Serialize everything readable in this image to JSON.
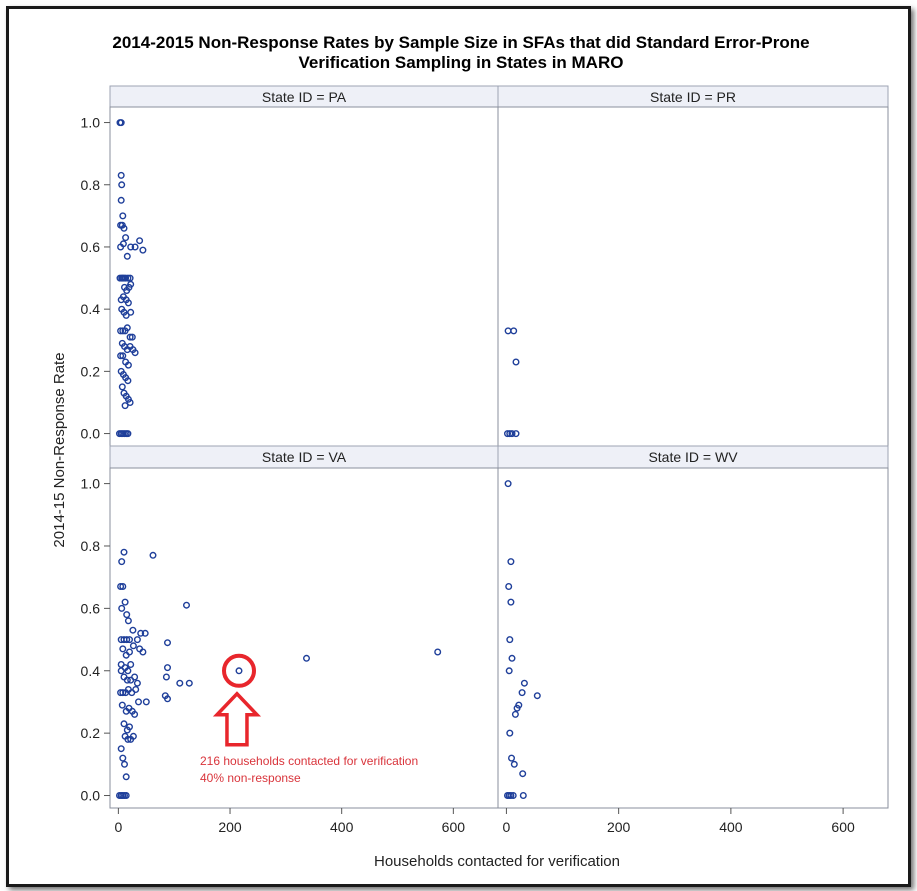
{
  "chart_data": {
    "type": "scatter",
    "title": "2014-2015 Non-Response Rates by Sample Size in SFAs that did Standard Error-Prone Verification Sampling in States in MARO",
    "title_lines": [
      "2014-2015 Non-Response Rates by Sample Size in SFAs that did Standard Error-Prone",
      "Verification Sampling in States in MARO"
    ],
    "xlabel": "Households contacted for verification",
    "ylabel": "2014-15 Non-Response Rate",
    "xlim": [
      -15,
      680
    ],
    "ylim": [
      -0.04,
      1.05
    ],
    "x_ticks": [
      0,
      200,
      400,
      600
    ],
    "y_ticks": [
      0.0,
      0.2,
      0.4,
      0.6,
      0.8,
      1.0
    ],
    "y_tick_labels": [
      "0.0",
      "0.2",
      "0.4",
      "0.6",
      "0.8",
      "1.0"
    ],
    "marker_color": "#1f3f9a",
    "grid": false,
    "panels": [
      {
        "label": "State ID = PA",
        "points": [
          [
            3,
            1.0
          ],
          [
            5,
            1.0
          ],
          [
            5,
            0.83
          ],
          [
            6,
            0.8
          ],
          [
            5,
            0.75
          ],
          [
            8,
            0.7
          ],
          [
            4,
            0.67
          ],
          [
            7,
            0.67
          ],
          [
            10,
            0.66
          ],
          [
            4,
            0.6
          ],
          [
            9,
            0.61
          ],
          [
            13,
            0.63
          ],
          [
            16,
            0.57
          ],
          [
            22,
            0.6
          ],
          [
            30,
            0.6
          ],
          [
            38,
            0.62
          ],
          [
            44,
            0.59
          ],
          [
            3,
            0.5
          ],
          [
            6,
            0.5
          ],
          [
            8,
            0.5
          ],
          [
            10,
            0.5
          ],
          [
            13,
            0.5
          ],
          [
            17,
            0.5
          ],
          [
            21,
            0.5
          ],
          [
            11,
            0.47
          ],
          [
            15,
            0.46
          ],
          [
            19,
            0.47
          ],
          [
            22,
            0.48
          ],
          [
            5,
            0.43
          ],
          [
            9,
            0.44
          ],
          [
            14,
            0.43
          ],
          [
            18,
            0.42
          ],
          [
            6,
            0.4
          ],
          [
            10,
            0.39
          ],
          [
            14,
            0.38
          ],
          [
            22,
            0.39
          ],
          [
            4,
            0.33
          ],
          [
            8,
            0.33
          ],
          [
            12,
            0.33
          ],
          [
            16,
            0.34
          ],
          [
            21,
            0.31
          ],
          [
            25,
            0.31
          ],
          [
            7,
            0.29
          ],
          [
            11,
            0.28
          ],
          [
            16,
            0.27
          ],
          [
            21,
            0.28
          ],
          [
            26,
            0.27
          ],
          [
            30,
            0.26
          ],
          [
            4,
            0.25
          ],
          [
            8,
            0.25
          ],
          [
            13,
            0.23
          ],
          [
            18,
            0.22
          ],
          [
            5,
            0.2
          ],
          [
            9,
            0.19
          ],
          [
            13,
            0.18
          ],
          [
            17,
            0.17
          ],
          [
            7,
            0.15
          ],
          [
            10,
            0.13
          ],
          [
            14,
            0.12
          ],
          [
            18,
            0.11
          ],
          [
            21,
            0.1
          ],
          [
            12,
            0.09
          ],
          [
            2,
            0.0
          ],
          [
            5,
            0.0
          ],
          [
            8,
            0.0
          ],
          [
            11,
            0.0
          ],
          [
            14,
            0.0
          ],
          [
            17,
            0.0
          ]
        ]
      },
      {
        "label": "State ID = PR",
        "points": [
          [
            3,
            0.33
          ],
          [
            13,
            0.33
          ],
          [
            17,
            0.23
          ],
          [
            2,
            0.0
          ],
          [
            6,
            0.0
          ],
          [
            10,
            0.0
          ],
          [
            17,
            0.0
          ]
        ]
      },
      {
        "label": "State ID = VA",
        "points": [
          [
            4,
            0.67
          ],
          [
            8,
            0.67
          ],
          [
            6,
            0.75
          ],
          [
            10,
            0.78
          ],
          [
            62,
            0.77
          ],
          [
            6,
            0.6
          ],
          [
            12,
            0.62
          ],
          [
            15,
            0.58
          ],
          [
            18,
            0.56
          ],
          [
            122,
            0.61
          ],
          [
            5,
            0.5
          ],
          [
            10,
            0.5
          ],
          [
            15,
            0.5
          ],
          [
            20,
            0.5
          ],
          [
            26,
            0.53
          ],
          [
            34,
            0.5
          ],
          [
            40,
            0.52
          ],
          [
            48,
            0.52
          ],
          [
            88,
            0.49
          ],
          [
            8,
            0.47
          ],
          [
            14,
            0.45
          ],
          [
            20,
            0.46
          ],
          [
            27,
            0.48
          ],
          [
            38,
            0.47
          ],
          [
            44,
            0.46
          ],
          [
            5,
            0.42
          ],
          [
            12,
            0.41
          ],
          [
            17,
            0.4
          ],
          [
            22,
            0.42
          ],
          [
            5,
            0.4
          ],
          [
            10,
            0.38
          ],
          [
            16,
            0.37
          ],
          [
            22,
            0.37
          ],
          [
            29,
            0.38
          ],
          [
            34,
            0.36
          ],
          [
            4,
            0.33
          ],
          [
            8,
            0.33
          ],
          [
            13,
            0.33
          ],
          [
            18,
            0.34
          ],
          [
            24,
            0.33
          ],
          [
            31,
            0.34
          ],
          [
            36,
            0.3
          ],
          [
            50,
            0.3
          ],
          [
            84,
            0.32
          ],
          [
            88,
            0.31
          ],
          [
            86,
            0.38
          ],
          [
            88,
            0.41
          ],
          [
            110,
            0.36
          ],
          [
            127,
            0.36
          ],
          [
            216,
            0.4
          ],
          [
            337,
            0.44
          ],
          [
            572,
            0.46
          ],
          [
            7,
            0.29
          ],
          [
            14,
            0.27
          ],
          [
            19,
            0.28
          ],
          [
            25,
            0.27
          ],
          [
            29,
            0.26
          ],
          [
            10,
            0.23
          ],
          [
            16,
            0.21
          ],
          [
            20,
            0.22
          ],
          [
            12,
            0.19
          ],
          [
            17,
            0.18
          ],
          [
            22,
            0.18
          ],
          [
            27,
            0.19
          ],
          [
            5,
            0.15
          ],
          [
            8,
            0.12
          ],
          [
            11,
            0.1
          ],
          [
            14,
            0.06
          ],
          [
            2,
            0.0
          ],
          [
            5,
            0.0
          ],
          [
            8,
            0.0
          ],
          [
            11,
            0.0
          ],
          [
            14,
            0.0
          ]
        ],
        "highlight": {
          "point": [
            216,
            0.4
          ],
          "text_lines": [
            "216 households contacted for verification",
            "40% non-response"
          ],
          "color": "#e8262c"
        }
      },
      {
        "label": "State ID = WV",
        "points": [
          [
            3,
            1.0
          ],
          [
            8,
            0.75
          ],
          [
            4,
            0.67
          ],
          [
            8,
            0.62
          ],
          [
            6,
            0.5
          ],
          [
            10,
            0.44
          ],
          [
            5,
            0.4
          ],
          [
            32,
            0.36
          ],
          [
            55,
            0.32
          ],
          [
            28,
            0.33
          ],
          [
            22,
            0.29
          ],
          [
            19,
            0.28
          ],
          [
            16,
            0.26
          ],
          [
            6,
            0.2
          ],
          [
            9,
            0.12
          ],
          [
            14,
            0.1
          ],
          [
            29,
            0.07
          ],
          [
            2,
            0.0
          ],
          [
            5,
            0.0
          ],
          [
            8,
            0.0
          ],
          [
            12,
            0.0
          ],
          [
            30,
            0.0
          ]
        ]
      }
    ]
  }
}
